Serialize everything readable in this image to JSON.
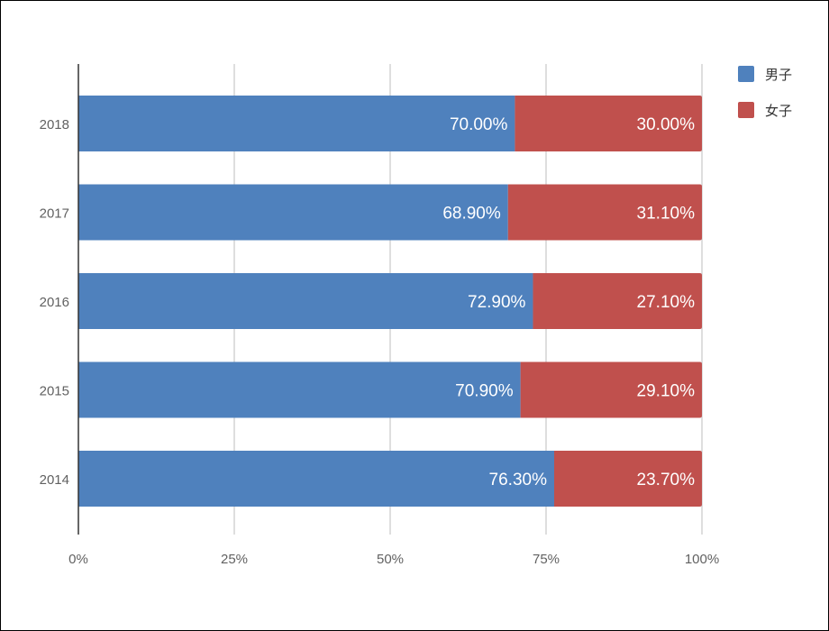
{
  "chart_data": {
    "type": "bar",
    "orientation": "horizontal",
    "stacked": "percent",
    "categories": [
      "2018",
      "2017",
      "2016",
      "2015",
      "2014"
    ],
    "series": [
      {
        "name": "男子",
        "color": "#4f81bd",
        "values": [
          70.0,
          68.9,
          72.9,
          70.9,
          76.3
        ],
        "labels": [
          "70.00%",
          "68.90%",
          "72.90%",
          "70.90%",
          "76.30%"
        ]
      },
      {
        "name": "女子",
        "color": "#c0504d",
        "values": [
          30.0,
          31.1,
          27.1,
          29.1,
          23.7
        ],
        "labels": [
          "30.00%",
          "31.10%",
          "27.10%",
          "29.10%",
          "23.70%"
        ]
      }
    ],
    "xlim": [
      0,
      100
    ],
    "xticks": [
      0,
      25,
      50,
      75,
      100
    ],
    "xtick_labels": [
      "0%",
      "25%",
      "50%",
      "75%",
      "100%"
    ],
    "grid": true,
    "legend_position": "top-right",
    "title": "",
    "xlabel": "",
    "ylabel": ""
  }
}
